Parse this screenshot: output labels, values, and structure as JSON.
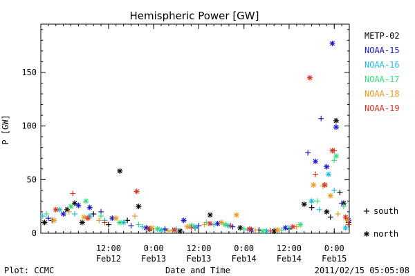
{
  "chart_data": {
    "type": "scatter",
    "title": "Hemispheric Power [GW]",
    "ylabel": "P [GW]",
    "xlabel": "Date and Time",
    "ylim": [
      0,
      195
    ],
    "xlim": [
      "2011-02-11T18:00",
      "2011-02-15T04:00"
    ],
    "y_ticks": [
      0,
      50,
      100,
      150
    ],
    "x_ticks": [
      {
        "time": "2011-02-12T12:00",
        "label1": "12:00",
        "label2": "Feb12"
      },
      {
        "time": "2011-02-13T00:00",
        "label1": "0:00",
        "label2": "Feb13"
      },
      {
        "time": "2011-02-13T12:00",
        "label1": "12:00",
        "label2": "Feb13"
      },
      {
        "time": "2011-02-14T00:00",
        "label1": "0:00",
        "label2": "Feb14"
      },
      {
        "time": "2011-02-14T12:00",
        "label1": "12:00",
        "label2": "Feb14"
      },
      {
        "time": "2011-02-15T00:00",
        "label1": "0:00",
        "label2": "Feb15"
      }
    ],
    "markers": {
      "south": "+",
      "north": "*"
    },
    "marker_legend": [
      {
        "marker": "+",
        "label": "south"
      },
      {
        "marker": "*",
        "label": "north"
      }
    ],
    "series": [
      {
        "name": "METP-02",
        "color": "#000000",
        "points": [
          {
            "t": "2011-02-11T19:00",
            "p": 10,
            "h": "north"
          },
          {
            "t": "2011-02-11T21:00",
            "p": 12,
            "h": "south"
          },
          {
            "t": "2011-02-12T01:00",
            "p": 22,
            "h": "north"
          },
          {
            "t": "2011-02-12T03:00",
            "p": 28,
            "h": "north"
          },
          {
            "t": "2011-02-12T05:00",
            "p": 10,
            "h": "north"
          },
          {
            "t": "2011-02-12T08:00",
            "p": 18,
            "h": "south"
          },
          {
            "t": "2011-02-12T12:00",
            "p": 8,
            "h": "south"
          },
          {
            "t": "2011-02-12T15:00",
            "p": 58,
            "h": "north"
          },
          {
            "t": "2011-02-12T17:00",
            "p": 12,
            "h": "south"
          },
          {
            "t": "2011-02-12T20:00",
            "p": 25,
            "h": "north"
          },
          {
            "t": "2011-02-12T23:00",
            "p": 4,
            "h": "north"
          },
          {
            "t": "2011-02-13T03:00",
            "p": 3,
            "h": "south"
          },
          {
            "t": "2011-02-13T07:00",
            "p": 2,
            "h": "north"
          },
          {
            "t": "2011-02-13T11:00",
            "p": 5,
            "h": "south"
          },
          {
            "t": "2011-02-13T15:00",
            "p": 17,
            "h": "north"
          },
          {
            "t": "2011-02-13T19:00",
            "p": 8,
            "h": "south"
          },
          {
            "t": "2011-02-13T23:00",
            "p": 5,
            "h": "north"
          },
          {
            "t": "2011-02-14T04:00",
            "p": 3,
            "h": "south"
          },
          {
            "t": "2011-02-14T08:00",
            "p": 2,
            "h": "north"
          },
          {
            "t": "2011-02-14T12:00",
            "p": 4,
            "h": "south"
          },
          {
            "t": "2011-02-14T16:00",
            "p": 27,
            "h": "north"
          },
          {
            "t": "2011-02-14T18:00",
            "p": 24,
            "h": "south"
          },
          {
            "t": "2011-02-14T22:00",
            "p": 20,
            "h": "north"
          },
          {
            "t": "2011-02-14T23:00",
            "p": 15,
            "h": "south"
          },
          {
            "t": "2011-02-15T00:30",
            "p": 105,
            "h": "north"
          },
          {
            "t": "2011-02-15T01:30",
            "p": 38,
            "h": "south"
          },
          {
            "t": "2011-02-15T02:30",
            "p": 28,
            "h": "north"
          },
          {
            "t": "2011-02-15T04:30",
            "p": 10,
            "h": "south"
          }
        ]
      },
      {
        "name": "NOAA-15",
        "color": "#1a1acc",
        "points": [
          {
            "t": "2011-02-11T20:00",
            "p": 14,
            "h": "south"
          },
          {
            "t": "2011-02-12T00:00",
            "p": 18,
            "h": "north"
          },
          {
            "t": "2011-02-12T04:00",
            "p": 26,
            "h": "north"
          },
          {
            "t": "2011-02-12T07:00",
            "p": 24,
            "h": "north"
          },
          {
            "t": "2011-02-12T10:00",
            "p": 20,
            "h": "south"
          },
          {
            "t": "2011-02-12T13:00",
            "p": 14,
            "h": "north"
          },
          {
            "t": "2011-02-12T18:00",
            "p": 7,
            "h": "south"
          },
          {
            "t": "2011-02-12T22:00",
            "p": 5,
            "h": "north"
          },
          {
            "t": "2011-02-13T03:00",
            "p": 4,
            "h": "south"
          },
          {
            "t": "2011-02-13T08:00",
            "p": 12,
            "h": "north"
          },
          {
            "t": "2011-02-13T12:00",
            "p": 7,
            "h": "south"
          },
          {
            "t": "2011-02-13T17:00",
            "p": 9,
            "h": "north"
          },
          {
            "t": "2011-02-13T21:00",
            "p": 6,
            "h": "south"
          },
          {
            "t": "2011-02-14T02:00",
            "p": 3,
            "h": "north"
          },
          {
            "t": "2011-02-14T07:00",
            "p": 2,
            "h": "south"
          },
          {
            "t": "2011-02-14T11:00",
            "p": 5,
            "h": "north"
          },
          {
            "t": "2011-02-14T17:00",
            "p": 75,
            "h": "south"
          },
          {
            "t": "2011-02-14T19:00",
            "p": 67,
            "h": "north"
          },
          {
            "t": "2011-02-14T20:30",
            "p": 107,
            "h": "south"
          },
          {
            "t": "2011-02-14T22:00",
            "p": 62,
            "h": "north"
          },
          {
            "t": "2011-02-14T23:30",
            "p": 177,
            "h": "north"
          },
          {
            "t": "2011-02-15T00:30",
            "p": 99,
            "h": "north"
          },
          {
            "t": "2011-02-15T02:00",
            "p": 28,
            "h": "south"
          },
          {
            "t": "2011-02-15T04:00",
            "p": 12,
            "h": "north"
          }
        ]
      },
      {
        "name": "NOAA-16",
        "color": "#22bbdd",
        "points": [
          {
            "t": "2011-02-11T18:30",
            "p": 16,
            "h": "south"
          },
          {
            "t": "2011-02-11T23:00",
            "p": 22,
            "h": "north"
          },
          {
            "t": "2011-02-12T03:00",
            "p": 18,
            "h": "south"
          },
          {
            "t": "2011-02-12T07:00",
            "p": 16,
            "h": "north"
          },
          {
            "t": "2011-02-12T11:00",
            "p": 12,
            "h": "south"
          },
          {
            "t": "2011-02-12T16:00",
            "p": 10,
            "h": "north"
          },
          {
            "t": "2011-02-12T21:00",
            "p": 6,
            "h": "south"
          },
          {
            "t": "2011-02-13T02:00",
            "p": 3,
            "h": "north"
          },
          {
            "t": "2011-02-13T06:00",
            "p": 4,
            "h": "south"
          },
          {
            "t": "2011-02-13T11:00",
            "p": 6,
            "h": "north"
          },
          {
            "t": "2011-02-13T16:00",
            "p": 8,
            "h": "south"
          },
          {
            "t": "2011-02-13T20:00",
            "p": 7,
            "h": "north"
          },
          {
            "t": "2011-02-14T01:00",
            "p": 3,
            "h": "south"
          },
          {
            "t": "2011-02-14T06:00",
            "p": 2,
            "h": "north"
          },
          {
            "t": "2011-02-14T12:00",
            "p": 5,
            "h": "south"
          },
          {
            "t": "2011-02-14T18:00",
            "p": 30,
            "h": "north"
          },
          {
            "t": "2011-02-14T20:00",
            "p": 22,
            "h": "south"
          },
          {
            "t": "2011-02-14T22:30",
            "p": 55,
            "h": "north"
          },
          {
            "t": "2011-02-15T00:00",
            "p": 40,
            "h": "south"
          },
          {
            "t": "2011-02-15T03:00",
            "p": 5,
            "h": "north"
          }
        ]
      },
      {
        "name": "NOAA-17",
        "color": "#33dd77",
        "points": [
          {
            "t": "2011-02-11T19:30",
            "p": 18,
            "h": "south"
          },
          {
            "t": "2011-02-12T02:00",
            "p": 25,
            "h": "north"
          },
          {
            "t": "2011-02-12T06:00",
            "p": 30,
            "h": "north"
          },
          {
            "t": "2011-02-12T10:00",
            "p": 16,
            "h": "south"
          },
          {
            "t": "2011-02-12T15:00",
            "p": 10,
            "h": "north"
          },
          {
            "t": "2011-02-12T20:00",
            "p": 8,
            "h": "south"
          },
          {
            "t": "2011-02-13T01:00",
            "p": 4,
            "h": "north"
          },
          {
            "t": "2011-02-13T05:00",
            "p": 3,
            "h": "south"
          },
          {
            "t": "2011-02-13T10:00",
            "p": 7,
            "h": "north"
          },
          {
            "t": "2011-02-13T14:00",
            "p": 10,
            "h": "south"
          },
          {
            "t": "2011-02-13T19:00",
            "p": 8,
            "h": "north"
          },
          {
            "t": "2011-02-14T00:00",
            "p": 4,
            "h": "south"
          },
          {
            "t": "2011-02-14T05:00",
            "p": 2,
            "h": "north"
          },
          {
            "t": "2011-02-14T10:00",
            "p": 3,
            "h": "south"
          },
          {
            "t": "2011-02-14T15:00",
            "p": 8,
            "h": "north"
          },
          {
            "t": "2011-02-14T19:30",
            "p": 30,
            "h": "south"
          },
          {
            "t": "2011-02-14T21:30",
            "p": 45,
            "h": "north"
          },
          {
            "t": "2011-02-15T00:00",
            "p": 68,
            "h": "south"
          },
          {
            "t": "2011-02-15T00:30",
            "p": 72,
            "h": "north"
          },
          {
            "t": "2011-02-15T02:30",
            "p": 25,
            "h": "south"
          }
        ]
      },
      {
        "name": "NOAA-18",
        "color": "#ee9922",
        "points": [
          {
            "t": "2011-02-11T21:30",
            "p": 12,
            "h": "north"
          },
          {
            "t": "2011-02-12T01:30",
            "p": 20,
            "h": "south"
          },
          {
            "t": "2011-02-12T05:30",
            "p": 15,
            "h": "north"
          },
          {
            "t": "2011-02-12T09:30",
            "p": 12,
            "h": "south"
          },
          {
            "t": "2011-02-12T14:00",
            "p": 14,
            "h": "north"
          },
          {
            "t": "2011-02-12T19:00",
            "p": 16,
            "h": "south"
          },
          {
            "t": "2011-02-12T23:30",
            "p": 5,
            "h": "north"
          },
          {
            "t": "2011-02-13T04:00",
            "p": 2,
            "h": "south"
          },
          {
            "t": "2011-02-13T09:00",
            "p": 6,
            "h": "north"
          },
          {
            "t": "2011-02-13T13:30",
            "p": 8,
            "h": "south"
          },
          {
            "t": "2011-02-13T18:00",
            "p": 10,
            "h": "north"
          },
          {
            "t": "2011-02-13T22:00",
            "p": 17,
            "h": "north"
          },
          {
            "t": "2011-02-14T03:00",
            "p": 3,
            "h": "south"
          },
          {
            "t": "2011-02-14T09:00",
            "p": 3,
            "h": "north"
          },
          {
            "t": "2011-02-14T14:00",
            "p": 6,
            "h": "south"
          },
          {
            "t": "2011-02-14T18:30",
            "p": 45,
            "h": "north"
          },
          {
            "t": "2011-02-14T21:00",
            "p": 44,
            "h": "south"
          },
          {
            "t": "2011-02-14T23:00",
            "p": 35,
            "h": "north"
          },
          {
            "t": "2011-02-15T01:00",
            "p": 18,
            "h": "south"
          },
          {
            "t": "2011-02-15T03:30",
            "p": 12,
            "h": "north"
          }
        ]
      },
      {
        "name": "NOAA-19",
        "color": "#dd3322",
        "points": [
          {
            "t": "2011-02-11T22:00",
            "p": 22,
            "h": "north"
          },
          {
            "t": "2011-02-12T02:30",
            "p": 37,
            "h": "south"
          },
          {
            "t": "2011-02-12T06:30",
            "p": 14,
            "h": "north"
          },
          {
            "t": "2011-02-12T11:00",
            "p": 10,
            "h": "south"
          },
          {
            "t": "2011-02-12T19:30",
            "p": 39,
            "h": "north"
          },
          {
            "t": "2011-02-12T22:30",
            "p": 4,
            "h": "south"
          },
          {
            "t": "2011-02-13T05:30",
            "p": 3,
            "h": "north"
          },
          {
            "t": "2011-02-13T10:00",
            "p": 5,
            "h": "south"
          },
          {
            "t": "2011-02-13T15:00",
            "p": 9,
            "h": "north"
          },
          {
            "t": "2011-02-13T20:30",
            "p": 7,
            "h": "south"
          },
          {
            "t": "2011-02-14T01:30",
            "p": 4,
            "h": "north"
          },
          {
            "t": "2011-02-14T07:00",
            "p": 2,
            "h": "south"
          },
          {
            "t": "2011-02-14T13:00",
            "p": 6,
            "h": "north"
          },
          {
            "t": "2011-02-14T17:30",
            "p": 145,
            "h": "north"
          },
          {
            "t": "2011-02-14T19:00",
            "p": 55,
            "h": "south"
          },
          {
            "t": "2011-02-14T21:30",
            "p": 45,
            "h": "north"
          },
          {
            "t": "2011-02-14T23:30",
            "p": 77,
            "h": "north"
          },
          {
            "t": "2011-02-15T00:00",
            "p": 77,
            "h": "south"
          },
          {
            "t": "2011-02-15T03:00",
            "p": 15,
            "h": "north"
          },
          {
            "t": "2011-02-15T05:00",
            "p": 8,
            "h": "south"
          }
        ]
      }
    ]
  },
  "footer": {
    "left": "Plot: CCMC",
    "center": "Date and Time",
    "right": "2011/02/15 05:05:08"
  }
}
